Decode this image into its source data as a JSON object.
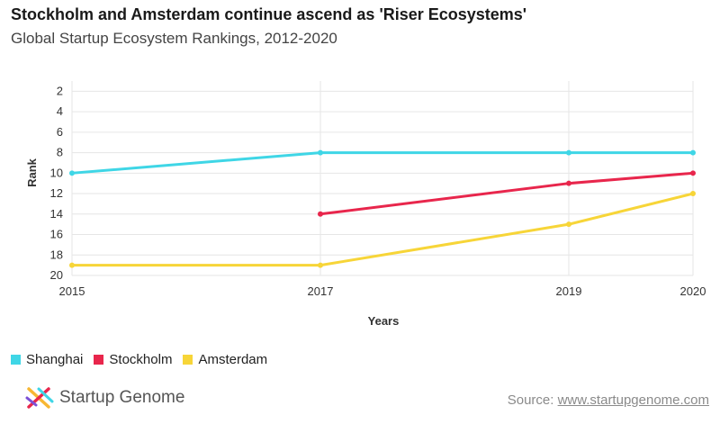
{
  "header": {
    "title": "Stockholm and Amsterdam continue ascend as 'Riser Ecosystems'",
    "subtitle": "Global Startup Ecosystem Rankings, 2012-2020"
  },
  "chart_data": {
    "type": "line",
    "x": [
      2015,
      2017,
      2019,
      2020
    ],
    "x_tick_labels": [
      "2015",
      "2017",
      "2019",
      "2020"
    ],
    "xlabel": "Years",
    "ylabel": "Rank",
    "y_ticks": [
      2,
      4,
      6,
      8,
      10,
      12,
      14,
      16,
      18,
      20
    ],
    "ylim": [
      20,
      1
    ],
    "y_reversed": true,
    "grid": true,
    "series": [
      {
        "name": "Shanghai",
        "color": "#3fd6e6",
        "points": [
          [
            2015,
            10
          ],
          [
            2017,
            8
          ],
          [
            2019,
            8
          ],
          [
            2020,
            8
          ]
        ]
      },
      {
        "name": "Stockholm",
        "color": "#e8264c",
        "points": [
          [
            2017,
            14
          ],
          [
            2019,
            11
          ],
          [
            2020,
            10
          ]
        ]
      },
      {
        "name": "Amsterdam",
        "color": "#f7d538",
        "points": [
          [
            2015,
            19
          ],
          [
            2017,
            19
          ],
          [
            2019,
            15
          ],
          [
            2020,
            12
          ]
        ]
      }
    ]
  },
  "legend": {
    "items": [
      {
        "label": "Shanghai",
        "color": "#3fd6e6"
      },
      {
        "label": "Stockholm",
        "color": "#e8264c"
      },
      {
        "label": "Amsterdam",
        "color": "#f7d538"
      }
    ]
  },
  "footer": {
    "logo_text": "Startup Genome",
    "logo_icon": "startup-genome-logo-icon",
    "source_prefix": "Source: ",
    "source_link": "www.startupgenome.com"
  }
}
